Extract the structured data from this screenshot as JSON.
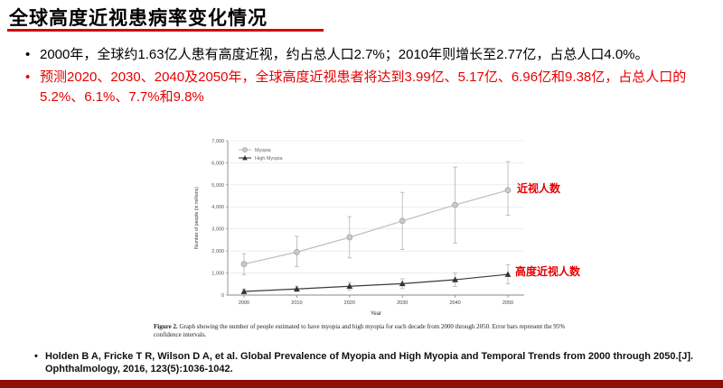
{
  "slide": {
    "title": "全球高度近视患病率变化情况",
    "bullets": [
      {
        "text": "2000年，全球约1.63亿人患有高度近视，约占总人口2.7%；2010年则增长至2.77亿，占总人口4.0%。",
        "color": "#000000"
      },
      {
        "text": "预测2020、2030、2040及2050年，全球高度近视患者将达到3.99亿、5.17亿、6.96亿和9.38亿，占总人口的5.2%、6.1%、7.7%和9.8%",
        "color": "#e60000"
      }
    ],
    "annotations": {
      "myopia": "近视人数",
      "high_myopia": "高度近视人数"
    },
    "caption": {
      "prefix": "Figure 2.",
      "text": "Graph showing the number of people estimated to have myopia and high myopia for each decade from 2000 through 2050. Error bars represent the 95% confidence intervals."
    },
    "citation": "Holden B A, Fricke T R, Wilson D A, et al. Global Prevalence of Myopia and High Myopia and Temporal Trends from 2000 through 2050.[J]. Ophthalmology, 2016, 123(5):1036-1042.",
    "colors": {
      "accent_red": "#e60000",
      "title_underline": "#d40000",
      "bottom_bar": "#8c1004",
      "myopia": "#bdbdbd",
      "high_myopia": "#3b3b3b"
    }
  },
  "chart_data": {
    "type": "line",
    "x": [
      2000,
      2010,
      2020,
      2030,
      2040,
      2050
    ],
    "series": [
      {
        "name": "Myopia",
        "values": [
          1406,
          1950,
          2620,
          3361,
          4089,
          4758
        ],
        "ci_low": [
          932,
          1290,
          1684,
          2062,
          2357,
          3620
        ],
        "ci_high": [
          1880,
          2660,
          3560,
          4660,
          5810,
          6056
        ]
      },
      {
        "name": "High Myopia",
        "values": [
          163,
          277,
          399,
          517,
          696,
          938
        ],
        "ci_low": [
          70,
          160,
          230,
          290,
          390,
          510
        ],
        "ci_high": [
          260,
          400,
          570,
          740,
          1000,
          1370
        ]
      }
    ],
    "title": "",
    "xlabel": "Year",
    "ylabel": "Number of people (in millions)",
    "ylim": [
      0,
      7000
    ],
    "yticks": [
      "0",
      "1,000",
      "2,000",
      "3,000",
      "4,000",
      "5,000",
      "6,000",
      "7,000"
    ],
    "legend": [
      "Myopia",
      "High Myopia"
    ],
    "legend_position": "top-left",
    "grid": true
  }
}
